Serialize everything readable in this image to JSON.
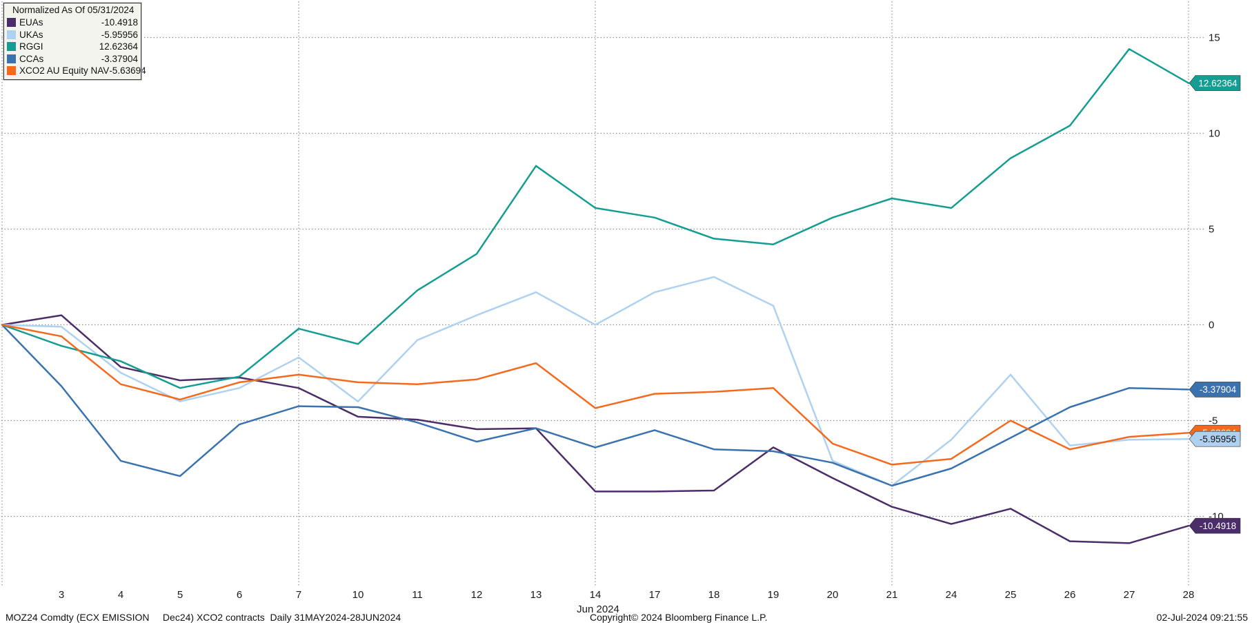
{
  "legend": {
    "title": "Normalized As Of 05/31/2024",
    "items": [
      {
        "label": "EUAs",
        "value": "-10.4918"
      },
      {
        "label": "UKAs",
        "value": "-5.95956"
      },
      {
        "label": "RGGI",
        "value": "12.62364"
      },
      {
        "label": "CCAs",
        "value": "-3.37904"
      },
      {
        "label": "XCO2 AU Equity NAV",
        "value": "-5.63694"
      }
    ]
  },
  "chart_data": {
    "type": "line",
    "title": "Normalized As Of 05/31/2024",
    "x": [
      "05/31",
      "3",
      "4",
      "5",
      "6",
      "7",
      "10",
      "11",
      "12",
      "13",
      "14",
      "17",
      "18",
      "19",
      "20",
      "21",
      "24",
      "25",
      "26",
      "27",
      "28"
    ],
    "x_tick_labels": [
      "3",
      "4",
      "5",
      "6",
      "7",
      "10",
      "11",
      "12",
      "13",
      "14",
      "17",
      "18",
      "19",
      "20",
      "21",
      "24",
      "25",
      "26",
      "27",
      "28"
    ],
    "month_label": "Jun 2024",
    "y_ticks": [
      15,
      10,
      5,
      0,
      -5,
      -10
    ],
    "ylim": [
      -13,
      16.5
    ],
    "grid": "dotted",
    "vgrid_indices": [
      0,
      5,
      10,
      15,
      20
    ],
    "series": [
      {
        "name": "EUAs",
        "color": "#4a2d69",
        "badge_text_color": "#ffffff",
        "last_label": "-10.4918",
        "values": [
          0,
          0.5,
          -2.2,
          -2.9,
          -2.75,
          -3.3,
          -4.8,
          -4.95,
          -5.45,
          -5.4,
          -8.7,
          -8.7,
          -8.65,
          -6.4,
          -8.0,
          -9.5,
          -10.4,
          -9.6,
          -11.3,
          -11.4,
          -10.4918
        ]
      },
      {
        "name": "UKAs",
        "color": "#aed1f2",
        "badge_text_color": "#111111",
        "last_label": "-5.95956",
        "values": [
          0,
          -0.1,
          -2.5,
          -4.0,
          -3.3,
          -1.7,
          -4.0,
          -0.8,
          0.5,
          1.7,
          0.0,
          1.7,
          2.5,
          1.0,
          -7.1,
          -8.4,
          -6.0,
          -2.6,
          -6.3,
          -6.0,
          -5.95956
        ]
      },
      {
        "name": "RGGI",
        "color": "#149d92",
        "badge_text_color": "#ffffff",
        "last_label": "12.62364",
        "values": [
          0,
          -1.1,
          -1.9,
          -3.3,
          -2.7,
          -0.2,
          -1.0,
          1.8,
          3.7,
          8.3,
          6.1,
          5.6,
          4.5,
          4.2,
          5.6,
          6.6,
          6.1,
          8.7,
          10.4,
          14.4,
          12.62364
        ]
      },
      {
        "name": "CCAs",
        "color": "#3a72b0",
        "badge_text_color": "#ffffff",
        "last_label": "-3.37904",
        "values": [
          0,
          -3.2,
          -7.1,
          -7.9,
          -5.2,
          -4.25,
          -4.3,
          -5.1,
          -6.1,
          -5.4,
          -6.4,
          -5.5,
          -6.5,
          -6.6,
          -7.2,
          -8.4,
          -7.5,
          -5.9,
          -4.3,
          -3.3,
          -3.37904
        ]
      },
      {
        "name": "XCO2 AU Equity NAV",
        "color": "#f5691d",
        "badge_text_color": "#ffffff",
        "last_label": "-5.63694",
        "values": [
          0,
          -0.6,
          -3.1,
          -3.9,
          -3.0,
          -2.6,
          -3.0,
          -3.1,
          -2.85,
          -2.0,
          -4.35,
          -3.6,
          -3.5,
          -3.3,
          -6.2,
          -7.3,
          -7.0,
          -5.0,
          -6.5,
          -5.85,
          -5.63694
        ]
      }
    ]
  },
  "footer": {
    "left": "MOZ24 Comdty (ECX EMISSION     Dec24) XCO2 contracts  Daily 31MAY2024-28JUN2024",
    "copyright": "Copyright© 2024 Bloomberg Finance L.P.",
    "timestamp": "02-Jul-2024 09:21:55"
  }
}
